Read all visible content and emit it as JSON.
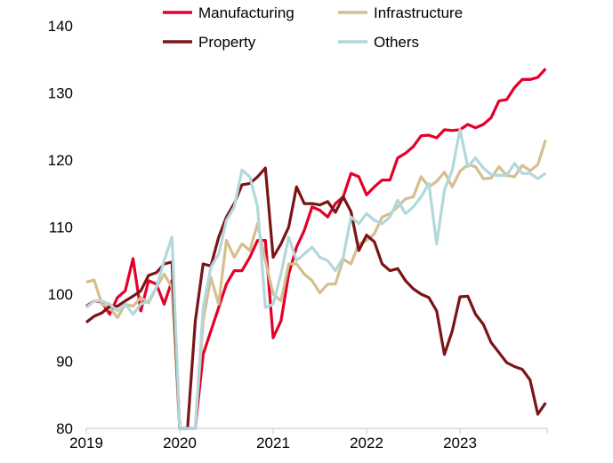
{
  "chart_data": {
    "type": "line",
    "title": "",
    "xlabel": "",
    "ylabel": "",
    "ylim": [
      80,
      140
    ],
    "yticks": [
      "80",
      "90",
      "100",
      "110",
      "120",
      "130",
      "140"
    ],
    "xticks": [
      "2019",
      "2020",
      "2021",
      "2022",
      "2023"
    ],
    "x_start": "2019-01",
    "frequency": "monthly",
    "grid": false,
    "legend": "top",
    "series": [
      {
        "name": "Manufacturing",
        "color": "#e4002b",
        "values": [
          98.2,
          99,
          98.8,
          97,
          99.5,
          100.5,
          105.3,
          97.5,
          102,
          101.5,
          98.5,
          102,
          70,
          70,
          80,
          91,
          94.5,
          98,
          101.5,
          103.5,
          103.5,
          105.5,
          108,
          108,
          93.5,
          96,
          103,
          107,
          109.5,
          113,
          112.5,
          111.5,
          113.5,
          114.5,
          118,
          117.5,
          114.8,
          116,
          117,
          117,
          120.3,
          121,
          122,
          123.6,
          123.7,
          123.3,
          124.5,
          124.4,
          124.5,
          125.3,
          124.8,
          125.3,
          126.3,
          128.8,
          129,
          130.8,
          132,
          132,
          132.3,
          133.6
        ]
      },
      {
        "name": "Infrastructure",
        "color": "#d4bf8e",
        "values": [
          101.8,
          102.1,
          98.5,
          98,
          96.5,
          98.5,
          98.2,
          99.5,
          98.7,
          101,
          103,
          101,
          70,
          70,
          80,
          96,
          102.5,
          98.5,
          108,
          105.5,
          107.5,
          106.5,
          110.5,
          105,
          100,
          99,
          104.5,
          104.5,
          103,
          102,
          100.2,
          101.5,
          101.5,
          105.2,
          104.5,
          107.5,
          108,
          109,
          111.5,
          112,
          113,
          114.2,
          114.5,
          117.5,
          116,
          116.8,
          118.2,
          116,
          118.3,
          119.3,
          119,
          117.2,
          117.3,
          119,
          117.7,
          117.5,
          119.2,
          118.4,
          119.3,
          123
        ]
      },
      {
        "name": "Property",
        "color": "#7b1418",
        "values": [
          95.8,
          96.7,
          97.2,
          98.2,
          98.2,
          99,
          99.7,
          100.5,
          102.8,
          103.2,
          104.5,
          104.8,
          70,
          70,
          96,
          104.5,
          104.2,
          108.5,
          111.5,
          113.5,
          116.3,
          116.5,
          117.5,
          118.8,
          105.5,
          107.5,
          110,
          116,
          113.5,
          113.5,
          113.3,
          113.8,
          112.2,
          114.5,
          112.3,
          106.5,
          108.8,
          107.8,
          104.5,
          103.5,
          103.8,
          102,
          100.8,
          100,
          99.5,
          97.5,
          91,
          94.5,
          99.6,
          99.7,
          97,
          95.5,
          92.8,
          91.3,
          89.8,
          89.2,
          88.8,
          87.2,
          82.1,
          83.8
        ]
      },
      {
        "name": "Others",
        "color": "#b2d8dc",
        "values": [
          98,
          99,
          99,
          98.5,
          97.5,
          98.5,
          97,
          98.5,
          99,
          101,
          105,
          108.5,
          70,
          70,
          80,
          98,
          104,
          106,
          111,
          113,
          118.5,
          117.5,
          113,
          98,
          98.5,
          103,
          108.5,
          105,
          106,
          107,
          105.5,
          105,
          103.5,
          105.5,
          111.5,
          110.5,
          112,
          111,
          110.5,
          111.5,
          114,
          112,
          113,
          114.5,
          116.5,
          107.5,
          115.5,
          118.5,
          124.5,
          119,
          120.3,
          118.8,
          117.8,
          117.7,
          117.7,
          119.5,
          118,
          118,
          117.2,
          118
        ]
      }
    ]
  }
}
